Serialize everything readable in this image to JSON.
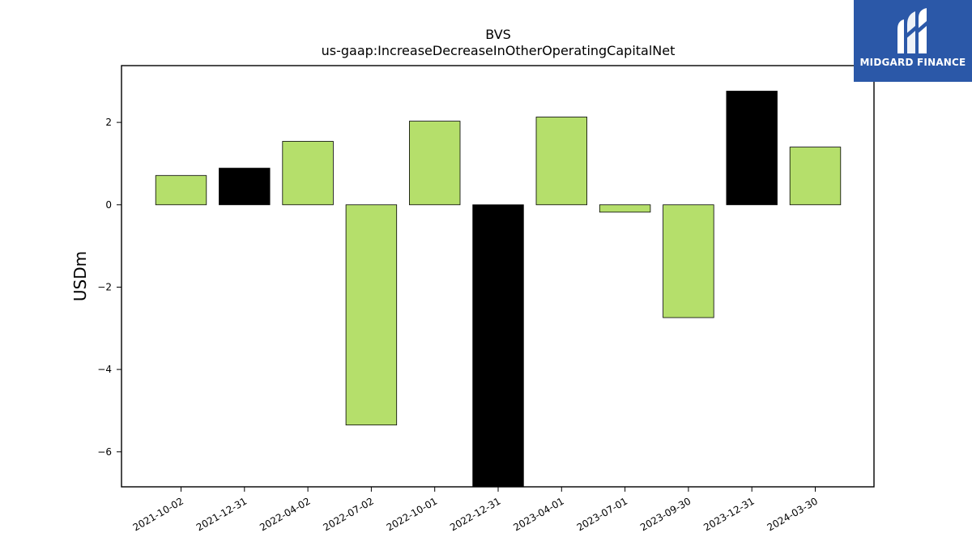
{
  "brand": {
    "name": "MIDGARD FINANCE",
    "background_color": "#2b58a8",
    "logo_icon": "midgard-m-logo-icon"
  },
  "chart_data": {
    "type": "bar",
    "title": "BVS",
    "subtitle": "us-gaap:IncreaseDecreaseInOtherOperatingCapitalNet",
    "xlabel": "",
    "ylabel": "USDm",
    "categories": [
      "2021-10-02",
      "2021-12-31",
      "2022-04-02",
      "2022-07-02",
      "2022-10-01",
      "2022-12-31",
      "2023-04-01",
      "2023-07-01",
      "2023-09-30",
      "2023-12-31",
      "2024-03-30"
    ],
    "values": [
      0.71,
      0.89,
      1.54,
      -5.35,
      2.03,
      -6.9,
      2.13,
      -0.18,
      -2.74,
      2.76,
      1.4
    ],
    "colors": [
      "#b5df6b",
      "#000000",
      "#b5df6b",
      "#b5df6b",
      "#b5df6b",
      "#000000",
      "#b5df6b",
      "#b5df6b",
      "#b5df6b",
      "#000000",
      "#b5df6b"
    ],
    "ylim": [
      -6.85,
      3.38
    ],
    "yticks": [
      -6,
      -4,
      -2,
      0,
      2
    ],
    "ytick_labels": [
      "−6",
      "−4",
      "−2",
      "0",
      "2"
    ],
    "grid": false,
    "legend": "none",
    "x_tick_rotation": 30
  }
}
